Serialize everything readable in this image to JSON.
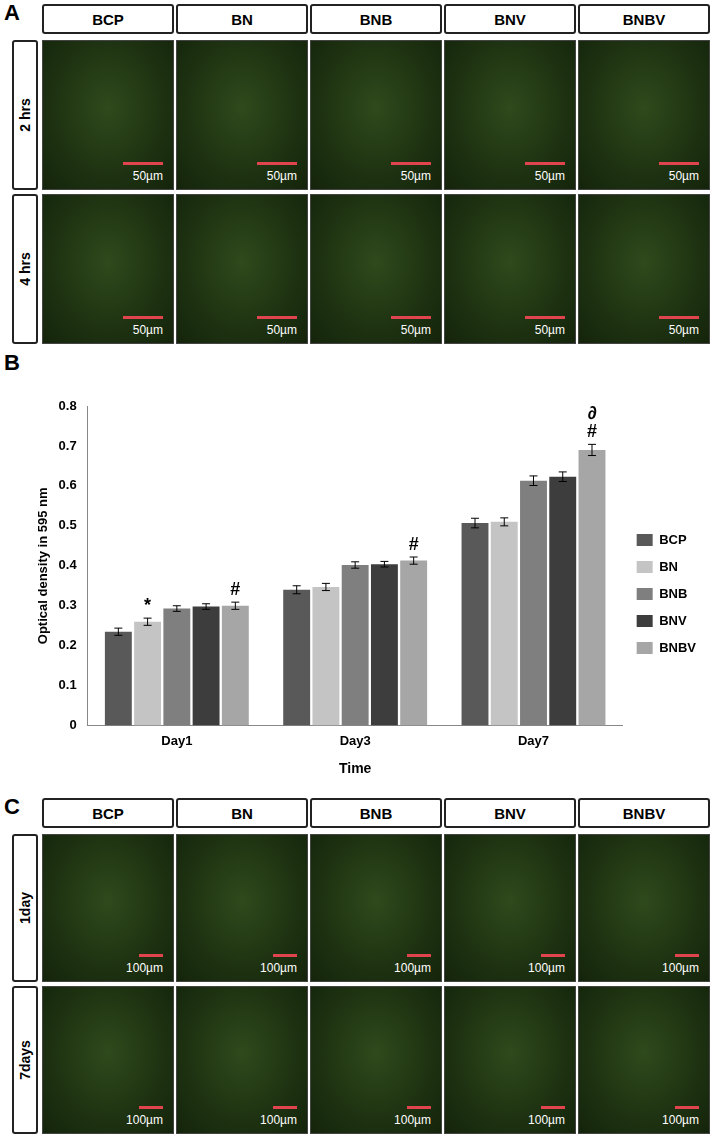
{
  "panel_a": {
    "panel_label": "A",
    "columns": [
      "BCP",
      "BN",
      "BNB",
      "BNV",
      "BNBV"
    ],
    "rows": [
      "2 hrs",
      "4 hrs"
    ],
    "scale_bar": "50µm"
  },
  "chart_data": {
    "panel_label": "B",
    "type": "bar",
    "categories": [
      "Day1",
      "Day3",
      "Day7"
    ],
    "series": [
      {
        "name": "BCP",
        "color": "#595959",
        "values": [
          0.235,
          0.34,
          0.507
        ],
        "errors": [
          0.009,
          0.01,
          0.012
        ]
      },
      {
        "name": "BN",
        "color": "#c4c4c4",
        "values": [
          0.26,
          0.347,
          0.51
        ],
        "errors": [
          0.009,
          0.009,
          0.01
        ]
      },
      {
        "name": "BNB",
        "color": "#7f7f7f",
        "values": [
          0.293,
          0.402,
          0.613
        ],
        "errors": [
          0.007,
          0.008,
          0.012
        ]
      },
      {
        "name": "BNV",
        "color": "#3d3d3d",
        "values": [
          0.298,
          0.404,
          0.623
        ],
        "errors": [
          0.007,
          0.007,
          0.012
        ]
      },
      {
        "name": "BNBV",
        "color": "#a6a6a6",
        "values": [
          0.3,
          0.413,
          0.69
        ],
        "errors": [
          0.009,
          0.009,
          0.014
        ]
      }
    ],
    "x_label": "Time",
    "y_label": "Optical density in 595 nm",
    "ylim": [
      0,
      0.8
    ],
    "yticks": [
      0,
      0.1,
      0.2,
      0.3,
      0.4,
      0.5,
      0.6,
      0.7,
      0.8
    ],
    "grid": false,
    "legend": "right",
    "annotations": [
      {
        "category": "Day1",
        "series": "BN",
        "text": "*"
      },
      {
        "category": "Day1",
        "series": "BNBV",
        "text": "#"
      },
      {
        "category": "Day3",
        "series": "BNBV",
        "text": "#"
      },
      {
        "category": "Day7",
        "series": "BNBV",
        "text": "#"
      },
      {
        "category": "Day7",
        "series": "BNBV",
        "text": "∂"
      }
    ]
  },
  "panel_c": {
    "panel_label": "C",
    "columns": [
      "BCP",
      "BN",
      "BNB",
      "BNV",
      "BNBV"
    ],
    "rows": [
      "1day",
      "7days"
    ],
    "scale_bar": "100µm"
  }
}
